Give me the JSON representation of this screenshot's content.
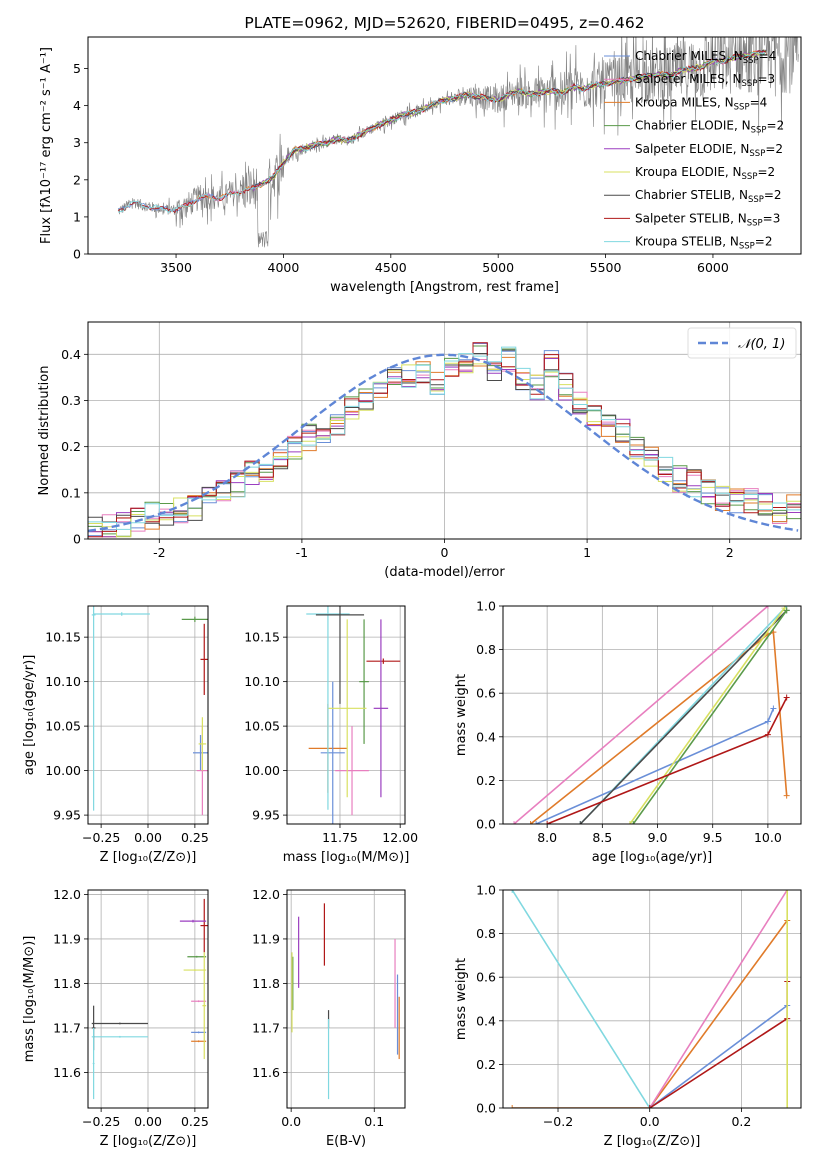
{
  "colors": {
    "chabrier_miles": "#6a8fd8",
    "salpeter_miles": "#e87fbf",
    "kroupa_miles": "#e07b2a",
    "chabrier_elodie": "#5a9a4a",
    "salpeter_elodie": "#9b3fc0",
    "kroupa_elodie": "#d8e060",
    "chabrier_stelib": "#4a4a4a",
    "salpeter_stelib": "#b01818",
    "kroupa_stelib": "#80d8e0",
    "data": "#808080",
    "grid": "#b0b0b0"
  },
  "legend1": [
    {
      "text": "Chabrier MILES, N",
      "sub": "SSP",
      "suffix": "=4",
      "color": "#6a8fd8"
    },
    {
      "text": "Salpeter MILES, N",
      "sub": "SSP",
      "suffix": "=3",
      "color": "#e87fbf"
    },
    {
      "text": "Kroupa MILES, N",
      "sub": "SSP",
      "suffix": "=4",
      "color": "#e07b2a"
    },
    {
      "text": "Chabrier ELODIE, N",
      "sub": "SSP",
      "suffix": "=2",
      "color": "#5a9a4a"
    },
    {
      "text": "Salpeter ELODIE, N",
      "sub": "SSP",
      "suffix": "=2",
      "color": "#9b3fc0"
    },
    {
      "text": "Kroupa ELODIE, N",
      "sub": "SSP",
      "suffix": "=2",
      "color": "#d8e060"
    },
    {
      "text": "Chabrier STELIB, N",
      "sub": "SSP",
      "suffix": "=2",
      "color": "#4a4a4a"
    },
    {
      "text": "Salpeter STELIB, N",
      "sub": "SSP",
      "suffix": "=3",
      "color": "#b01818"
    },
    {
      "text": "Kroupa STELIB, N",
      "sub": "SSP",
      "suffix": "=2",
      "color": "#80d8e0"
    }
  ],
  "chart_data": [
    {
      "id": "spectrum",
      "type": "line",
      "title": "PLATE=0962, MJD=52620, FIBERID=0495, z=0.462",
      "xlabel": "wavelength [Angstrom, rest frame]",
      "ylabel": "Flux [fλ10⁻¹⁷ erg cm⁻² s⁻¹ A⁻¹]",
      "xlim": [
        3090,
        6410
      ],
      "ylim": [
        0,
        5.85
      ],
      "xticks": [
        3500,
        4000,
        4500,
        5000,
        5500,
        6000
      ],
      "yticks": [
        0,
        1,
        2,
        3,
        4,
        5
      ],
      "continuum": {
        "x": [
          3230,
          3260,
          3300,
          3350,
          3400,
          3450,
          3500,
          3550,
          3600,
          3650,
          3700,
          3750,
          3800,
          3850,
          3900,
          3950,
          4000,
          4050,
          4100,
          4150,
          4200,
          4250,
          4300,
          4350,
          4400,
          4450,
          4500,
          4550,
          4600,
          4650,
          4700,
          4750,
          4800,
          4850,
          4900,
          4950,
          5000,
          5050,
          5100,
          5150,
          5200,
          5250,
          5300,
          5350,
          5400,
          5450,
          5500,
          5550,
          5600,
          5650,
          5700,
          5750,
          5800,
          5850,
          5900,
          5950,
          6000,
          6050,
          6100,
          6150,
          6200,
          6250
        ],
        "y": [
          1.15,
          1.25,
          1.4,
          1.3,
          1.25,
          1.2,
          1.2,
          1.3,
          1.5,
          1.55,
          1.5,
          1.6,
          1.7,
          1.75,
          1.9,
          2.05,
          2.45,
          2.8,
          2.85,
          2.95,
          3.0,
          3.1,
          3.05,
          3.2,
          3.35,
          3.5,
          3.6,
          3.75,
          3.8,
          3.9,
          4.05,
          4.15,
          4.2,
          4.3,
          4.25,
          4.2,
          4.15,
          4.3,
          4.4,
          4.3,
          4.35,
          4.4,
          4.35,
          4.5,
          4.45,
          4.55,
          4.6,
          4.65,
          4.7,
          4.75,
          4.8,
          4.85,
          4.8,
          4.95,
          5.0,
          5.05,
          5.2,
          5.2,
          5.3,
          5.35,
          5.4,
          5.45
        ]
      },
      "series": [
        {
          "name": "Chabrier MILES, NSSP=4",
          "color": "#6a8fd8"
        },
        {
          "name": "Salpeter MILES, NSSP=3",
          "color": "#e87fbf"
        },
        {
          "name": "Kroupa MILES, NSSP=4",
          "color": "#e07b2a"
        },
        {
          "name": "Chabrier ELODIE, NSSP=2",
          "color": "#5a9a4a"
        },
        {
          "name": "Salpeter ELODIE, NSSP=2",
          "color": "#9b3fc0"
        },
        {
          "name": "Kroupa ELODIE, NSSP=2",
          "color": "#d8e060"
        },
        {
          "name": "Chabrier STELIB, NSSP=2",
          "color": "#4a4a4a"
        },
        {
          "name": "Salpeter STELIB, NSSP=3",
          "color": "#b01818"
        },
        {
          "name": "Kroupa STELIB, NSSP=2",
          "color": "#80d8e0"
        }
      ],
      "legend_position": "top-right"
    },
    {
      "id": "residuals",
      "type": "line",
      "xlabel": "(data-model)/error",
      "ylabel": "Normed distribution",
      "xlim": [
        -2.5,
        2.5
      ],
      "ylim": [
        0,
        0.47
      ],
      "xticks": [
        -2,
        -1,
        0,
        1,
        2
      ],
      "yticks": [
        0.0,
        0.1,
        0.2,
        0.3,
        0.4
      ],
      "grid": true,
      "bins": [
        -2.5,
        -2.4,
        -2.3,
        -2.2,
        -2.1,
        -2.0,
        -1.9,
        -1.8,
        -1.7,
        -1.6,
        -1.5,
        -1.4,
        -1.3,
        -1.2,
        -1.1,
        -1.0,
        -0.9,
        -0.8,
        -0.7,
        -0.6,
        -0.5,
        -0.4,
        -0.3,
        -0.2,
        -0.1,
        0.0,
        0.1,
        0.2,
        0.3,
        0.4,
        0.5,
        0.6,
        0.7,
        0.8,
        0.9,
        1.0,
        1.1,
        1.2,
        1.3,
        1.4,
        1.5,
        1.6,
        1.7,
        1.8,
        1.9,
        2.0,
        2.1,
        2.2,
        2.3,
        2.4,
        2.5
      ],
      "hist_base": [
        0.02,
        0.025,
        0.03,
        0.04,
        0.05,
        0.06,
        0.06,
        0.07,
        0.09,
        0.1,
        0.12,
        0.14,
        0.15,
        0.17,
        0.2,
        0.22,
        0.22,
        0.25,
        0.28,
        0.3,
        0.32,
        0.35,
        0.35,
        0.36,
        0.34,
        0.37,
        0.38,
        0.4,
        0.37,
        0.39,
        0.35,
        0.33,
        0.38,
        0.33,
        0.3,
        0.27,
        0.25,
        0.23,
        0.2,
        0.18,
        0.15,
        0.13,
        0.12,
        0.1,
        0.09,
        0.08,
        0.08,
        0.07,
        0.06,
        0.07
      ],
      "gauss_legend": "𝒩(0, 1)",
      "gauss_color": "#5f86d6",
      "legend_position": "top-right"
    },
    {
      "id": "age_vs_Z",
      "type": "scatter",
      "xlabel": "Z [log₁₀(Z/Z⊙)]",
      "ylabel": "age  [log₁₀(age/yr)]",
      "xlim": [
        -0.32,
        0.32
      ],
      "ylim": [
        9.94,
        10.185
      ],
      "xticks": [
        -0.25,
        0.0,
        0.25
      ],
      "xticklabels": [
        "−0.25",
        "0.00",
        "0.25"
      ],
      "yticks": [
        9.95,
        10.0,
        10.05,
        10.1,
        10.15
      ],
      "yticklabels": [
        "9.95",
        "10.00",
        "10.05",
        "10.10",
        "10.15"
      ],
      "points": [
        {
          "x": 0.3,
          "y": 10.125,
          "xerr": 0.02,
          "yerr": 0.04,
          "color": "#b01818"
        },
        {
          "x": 0.28,
          "y": 10.02,
          "xerr": 0.04,
          "yerr": 0.02,
          "color": "#6a8fd8"
        },
        {
          "x": 0.29,
          "y": 10.0,
          "xerr": 0.03,
          "yerr": 0.05,
          "color": "#e87fbf"
        },
        {
          "x": 0.25,
          "y": 10.17,
          "xerr": 0.07,
          "yerr": 0.003,
          "color": "#5a9a4a"
        },
        {
          "x": 0.29,
          "y": 10.03,
          "xerr": 0.02,
          "yerr": 0.03,
          "color": "#d8e060"
        },
        {
          "x": -0.29,
          "y": 10.175,
          "xerr": 0.01,
          "yerr": 0.22,
          "color": "#80d8e0"
        },
        {
          "x": -0.14,
          "y": 10.176,
          "xerr": 0.15,
          "yerr": 0.002,
          "color": "#80d8e0"
        }
      ]
    },
    {
      "id": "age_vs_mass",
      "type": "scatter",
      "xlabel": "mass [log₁₀(M/M⊙)]",
      "xlim": [
        11.53,
        12.02
      ],
      "ylim": [
        9.94,
        10.185
      ],
      "xticks": [
        11.75,
        12.0
      ],
      "xticklabels": [
        "11.75",
        "12.00"
      ],
      "yticks": [
        9.95,
        10.0,
        10.05,
        10.1,
        10.15
      ],
      "yticklabels": [
        "9.95",
        "10.00",
        "10.05",
        "10.10",
        "10.15"
      ],
      "points": [
        {
          "x": 11.93,
          "y": 10.123,
          "xerr": 0.07,
          "yerr": 0.003,
          "color": "#b01818"
        },
        {
          "x": 11.92,
          "y": 10.07,
          "xerr": 0.03,
          "yerr": 0.1,
          "color": "#9b3fc0"
        },
        {
          "x": 11.85,
          "y": 10.1,
          "xerr": 0.02,
          "yerr": 0.07,
          "color": "#5a9a4a"
        },
        {
          "x": 11.7,
          "y": 10.025,
          "xerr": 0.08,
          "yerr": 0.05,
          "color": "#e07b2a"
        },
        {
          "x": 11.72,
          "y": 10.02,
          "xerr": 0.05,
          "yerr": 0.08,
          "color": "#6a8fd8"
        },
        {
          "x": 11.8,
          "y": 10.0,
          "xerr": 0.07,
          "yerr": 0.05,
          "color": "#e87fbf"
        },
        {
          "x": 11.78,
          "y": 10.07,
          "xerr": 0.08,
          "yerr": 0.1,
          "color": "#d8e060"
        },
        {
          "x": 11.7,
          "y": 10.176,
          "xerr": 0.09,
          "yerr": 0.22,
          "color": "#80d8e0"
        },
        {
          "x": 11.75,
          "y": 10.175,
          "xerr": 0.1,
          "yerr": 0.1,
          "color": "#4a4a4a"
        }
      ]
    },
    {
      "id": "massweight_vs_age",
      "type": "line",
      "xlabel": "age  [log₁₀(age/yr)]",
      "ylabel": "mass weight",
      "xlim": [
        7.6,
        10.3
      ],
      "ylim": [
        0,
        1
      ],
      "xticks": [
        8.0,
        8.5,
        9.0,
        9.5,
        10.0
      ],
      "xticklabels": [
        "8.0",
        "8.5",
        "9.0",
        "9.5",
        "10.0"
      ],
      "yticks": [
        0.0,
        0.2,
        0.4,
        0.6,
        0.8,
        1.0
      ],
      "yticklabels": [
        "0.0",
        "0.2",
        "0.4",
        "0.6",
        "0.8",
        "1.0"
      ],
      "grid": true,
      "series": [
        {
          "name": "Salpeter MILES",
          "color": "#e87fbf",
          "x": [
            7.7,
            10.0
          ],
          "y": [
            0.0,
            1.0
          ]
        },
        {
          "name": "Chabrier MILES",
          "color": "#6a8fd8",
          "x": [
            7.9,
            10.0,
            10.05,
            10.0
          ],
          "y": [
            0.0,
            0.47,
            0.53,
            0.47
          ]
        },
        {
          "name": "Kroupa MILES",
          "color": "#e07b2a",
          "x": [
            7.85,
            10.0,
            10.05,
            10.17
          ],
          "y": [
            0.0,
            0.87,
            0.88,
            0.13
          ]
        },
        {
          "name": "Kroupa STELIB",
          "color": "#80d8e0",
          "x": [
            8.3,
            10.17
          ],
          "y": [
            0.0,
            1.0
          ]
        },
        {
          "name": "Chabrier STELIB",
          "color": "#4a4a4a",
          "x": [
            8.3,
            10.17
          ],
          "y": [
            0.0,
            0.98
          ]
        },
        {
          "name": "Kroupa ELODIE",
          "color": "#d8e060",
          "x": [
            8.75,
            10.15
          ],
          "y": [
            0.0,
            0.99
          ]
        },
        {
          "name": "Chabrier ELODIE",
          "color": "#5a9a4a",
          "x": [
            8.78,
            10.17
          ],
          "y": [
            0.0,
            0.98
          ]
        },
        {
          "name": "Salpeter STELIB",
          "color": "#b01818",
          "x": [
            8.0,
            10.0,
            10.17
          ],
          "y": [
            0.0,
            0.41,
            0.58
          ]
        }
      ]
    },
    {
      "id": "mass_vs_Z",
      "type": "scatter",
      "xlabel": "Z [log₁₀(Z/Z⊙)]",
      "ylabel": "mass [log₁₀(M/M⊙)]",
      "xlim": [
        -0.32,
        0.32
      ],
      "ylim": [
        11.52,
        12.01
      ],
      "xticks": [
        -0.25,
        0.0,
        0.25
      ],
      "xticklabels": [
        "−0.25",
        "0.00",
        "0.25"
      ],
      "yticks": [
        11.6,
        11.7,
        11.8,
        11.9,
        12.0
      ],
      "yticklabels": [
        "11.6",
        "11.7",
        "11.8",
        "11.9",
        "12.0"
      ],
      "points": [
        {
          "x": 0.3,
          "y": 11.93,
          "xerr": 0.02,
          "yerr": 0.06,
          "color": "#b01818"
        },
        {
          "x": 0.24,
          "y": 11.94,
          "xerr": 0.07,
          "yerr": 0.003,
          "color": "#9b3fc0"
        },
        {
          "x": 0.26,
          "y": 11.86,
          "xerr": 0.05,
          "yerr": 0.002,
          "color": "#5a9a4a"
        },
        {
          "x": 0.25,
          "y": 11.83,
          "xerr": 0.06,
          "yerr": 0.002,
          "color": "#d8e060"
        },
        {
          "x": 0.27,
          "y": 11.76,
          "xerr": 0.04,
          "yerr": 0.002,
          "color": "#e87fbf"
        },
        {
          "x": 0.27,
          "y": 11.69,
          "xerr": 0.04,
          "yerr": 0.002,
          "color": "#6a8fd8"
        },
        {
          "x": 0.27,
          "y": 11.67,
          "xerr": 0.04,
          "yerr": 0.002,
          "color": "#e07b2a"
        },
        {
          "x": 0.3,
          "y": 11.75,
          "xerr": 0.01,
          "yerr": 0.12,
          "color": "#d8e060"
        },
        {
          "x": -0.15,
          "y": 11.71,
          "xerr": 0.15,
          "yerr": 0.002,
          "color": "#4a4a4a"
        },
        {
          "x": -0.15,
          "y": 11.68,
          "xerr": 0.15,
          "yerr": 0.002,
          "color": "#80d8e0"
        },
        {
          "x": -0.29,
          "y": 11.7,
          "xerr": 0.01,
          "yerr": 0.05,
          "color": "#4a4a4a"
        },
        {
          "x": -0.29,
          "y": 11.62,
          "xerr": 0.005,
          "yerr": 0.08,
          "color": "#80d8e0"
        }
      ]
    },
    {
      "id": "mass_vs_EBV",
      "type": "scatter",
      "xlabel": "E(B-V)",
      "xlim": [
        -0.005,
        0.137
      ],
      "ylim": [
        11.52,
        12.01
      ],
      "xticks": [
        0.0,
        0.1
      ],
      "xticklabels": [
        "0.0",
        "0.1"
      ],
      "yticks": [
        11.6,
        11.7,
        11.8,
        11.9,
        12.0
      ],
      "yticklabels": [
        "11.6",
        "11.7",
        "11.8",
        "11.9",
        "12.0"
      ],
      "points": [
        {
          "x": 0.04,
          "y": 11.91,
          "xerr": 0,
          "yerr": 0.07,
          "color": "#b01818"
        },
        {
          "x": 0.009,
          "y": 11.87,
          "xerr": 0,
          "yerr": 0.08,
          "color": "#9b3fc0"
        },
        {
          "x": 0.002,
          "y": 11.8,
          "xerr": 0,
          "yerr": 0.06,
          "color": "#5a9a4a"
        },
        {
          "x": 0.001,
          "y": 11.78,
          "xerr": 0,
          "yerr": 0.09,
          "color": "#d8e060"
        },
        {
          "x": 0.045,
          "y": 11.72,
          "xerr": 0,
          "yerr": 0.02,
          "color": "#4a4a4a"
        },
        {
          "x": 0.045,
          "y": 11.63,
          "xerr": 0,
          "yerr": 0.09,
          "color": "#80d8e0"
        },
        {
          "x": 0.125,
          "y": 11.8,
          "xerr": 0,
          "yerr": 0.1,
          "color": "#e87fbf"
        },
        {
          "x": 0.128,
          "y": 11.73,
          "xerr": 0,
          "yerr": 0.09,
          "color": "#6a8fd8"
        },
        {
          "x": 0.13,
          "y": 11.7,
          "xerr": 0,
          "yerr": 0.07,
          "color": "#e07b2a"
        }
      ]
    },
    {
      "id": "massweight_vs_Z",
      "type": "line",
      "xlabel": "Z [log₁₀(Z/Z⊙)]",
      "ylabel": "mass weight",
      "xlim": [
        -0.32,
        0.33
      ],
      "ylim": [
        0,
        1
      ],
      "xticks": [
        -0.2,
        0.0,
        0.2
      ],
      "xticklabels": [
        "−0.2",
        "0.0",
        "0.2"
      ],
      "yticks": [
        0.0,
        0.2,
        0.4,
        0.6,
        0.8,
        1.0
      ],
      "yticklabels": [
        "0.0",
        "0.2",
        "0.4",
        "0.6",
        "0.8",
        "1.0"
      ],
      "grid": true,
      "series": [
        {
          "name": "Kroupa STELIB",
          "color": "#80d8e0",
          "x": [
            -0.3,
            0.0
          ],
          "y": [
            1.0,
            0.0
          ]
        },
        {
          "name": "Kroupa MILES",
          "color": "#e07b2a",
          "x": [
            -0.3,
            0.0,
            0.3
          ],
          "y": [
            0.0,
            0.0,
            0.86
          ]
        },
        {
          "name": "Salpeter MILES",
          "color": "#e87fbf",
          "x": [
            0.0,
            0.3
          ],
          "y": [
            0.0,
            1.0
          ]
        },
        {
          "name": "Chabrier MILES",
          "color": "#6a8fd8",
          "x": [
            0.0,
            0.3
          ],
          "y": [
            0.0,
            0.47
          ]
        },
        {
          "name": "Salpeter STELIB",
          "color": "#b01818",
          "x": [
            0.0,
            0.3,
            0.3
          ],
          "y": [
            0.0,
            0.41,
            0.58
          ]
        },
        {
          "name": "Kroupa ELODIE",
          "color": "#d8e060",
          "x": [
            0.3,
            0.3
          ],
          "y": [
            0.0,
            1.0
          ]
        }
      ]
    }
  ]
}
